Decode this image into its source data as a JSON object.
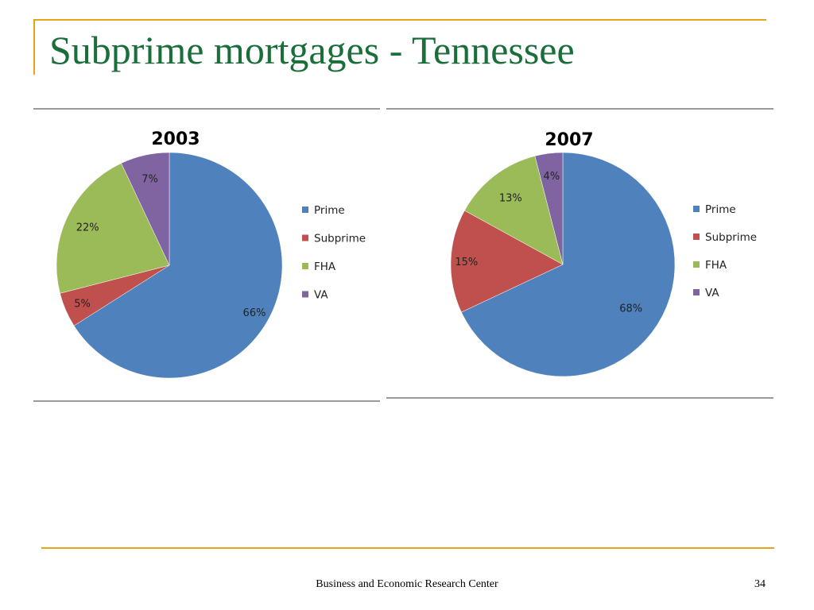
{
  "slide": {
    "title": "Subprime mortgages - Tennessee",
    "footer": "Business and Economic Research Center",
    "page_number": "34"
  },
  "colors": {
    "accent": "#e8a31c",
    "title_text": "#1a6e3a",
    "rule": "#9a9a9a"
  },
  "chart_data": [
    {
      "type": "pie",
      "title": "2003",
      "categories": [
        "Prime",
        "Subprime",
        "FHA",
        "VA"
      ],
      "values": [
        66,
        5,
        22,
        7
      ],
      "data_labels": [
        "66%",
        "5%",
        "22%",
        "7%"
      ],
      "colors": [
        "#4f81bd",
        "#c0504d",
        "#9bbb59",
        "#8064a2"
      ],
      "legend_position": "right"
    },
    {
      "type": "pie",
      "title": "2007",
      "categories": [
        "Prime",
        "Subprime",
        "FHA",
        "VA"
      ],
      "values": [
        68,
        15,
        13,
        4
      ],
      "data_labels": [
        "68%",
        "15%",
        "13%",
        "4%"
      ],
      "colors": [
        "#4f81bd",
        "#c0504d",
        "#9bbb59",
        "#8064a2"
      ],
      "legend_position": "right"
    }
  ]
}
